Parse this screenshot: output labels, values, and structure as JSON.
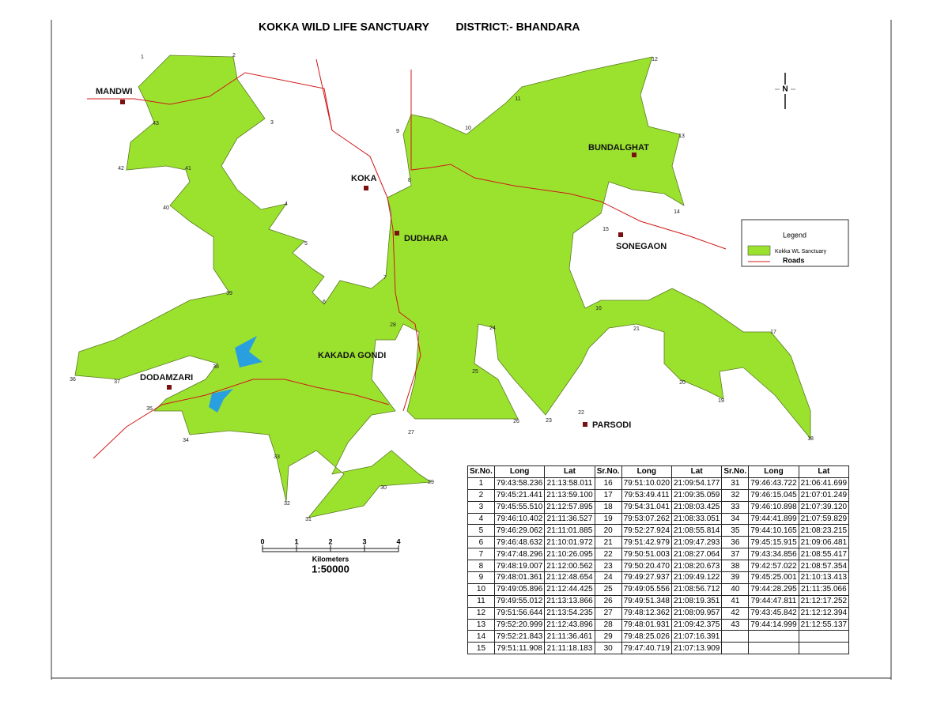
{
  "title": "KOKKA WILD LIFE SANCTUARY",
  "district": "DISTRICT:- BHANDARA",
  "places": [
    "MANDWI",
    "KOKA",
    "DUDHARA",
    "BUNDALGHAT",
    "SONEGAON",
    "KAKADA GONDI",
    "DODAMZARI",
    "PARSODI"
  ],
  "points": [
    1,
    2,
    3,
    4,
    5,
    6,
    7,
    8,
    9,
    10,
    11,
    12,
    13,
    14,
    15,
    16,
    17,
    18,
    19,
    20,
    21,
    22,
    23,
    24,
    25,
    26,
    27,
    28,
    29,
    30,
    31,
    32,
    33,
    34,
    35,
    36,
    37,
    38,
    39,
    40,
    41,
    42,
    43
  ],
  "north": "N",
  "legend": {
    "title": "Legend",
    "items": [
      "Kokka WL Sanctuary",
      "Roads"
    ]
  },
  "scale": {
    "ticks": [
      0,
      1,
      2,
      3,
      4
    ],
    "unit": "Kilometers",
    "ratio": "1:50000"
  },
  "table": {
    "header": [
      "Sr.No.",
      "Long",
      "Lat"
    ],
    "rows": [
      [
        1,
        "79:43:58.236",
        "21:13:58.011"
      ],
      [
        2,
        "79:45:21.441",
        "21:13:59.100"
      ],
      [
        3,
        "79:45:55.510",
        "21:12:57.895"
      ],
      [
        4,
        "79:46:10.402",
        "21:11:36.527"
      ],
      [
        5,
        "79:46:29.062",
        "21:11:01.885"
      ],
      [
        6,
        "79:46:48.632",
        "21:10:01.972"
      ],
      [
        7,
        "79:47:48.296",
        "21:10:26.095"
      ],
      [
        8,
        "79:48:19.007",
        "21:12:00.562"
      ],
      [
        9,
        "79:48:01.361",
        "21:12:48.654"
      ],
      [
        10,
        "79:49:05.896",
        "21:12:44.425"
      ],
      [
        11,
        "79:49:55.012",
        "21:13:13.866"
      ],
      [
        12,
        "79:51:56.644",
        "21:13:54.235"
      ],
      [
        13,
        "79:52:20.999",
        "21:12:43.896"
      ],
      [
        14,
        "79:52:21.843",
        "21:11:36.461"
      ],
      [
        15,
        "79:51:11.908",
        "21:11:18.183"
      ],
      [
        16,
        "79:51:10.020",
        "21:09:54.177"
      ],
      [
        17,
        "79:53:49.411",
        "21:09:35.059"
      ],
      [
        18,
        "79:54:31.041",
        "21:08:03.425"
      ],
      [
        19,
        "79:53:07.262",
        "21:08:33.051"
      ],
      [
        20,
        "79:52:27.924",
        "21:08:55.814"
      ],
      [
        21,
        "79:51:42.979",
        "21:09:47.293"
      ],
      [
        22,
        "79:50:51.003",
        "21:08:27.064"
      ],
      [
        23,
        "79:50:20.470",
        "21:08:20.673"
      ],
      [
        24,
        "79:49:27.937",
        "21:09:49.122"
      ],
      [
        25,
        "79:49:05.556",
        "21:08:56.712"
      ],
      [
        26,
        "79:49:51.348",
        "21:08:19.351"
      ],
      [
        27,
        "79:48:12.362",
        "21:08:09.957"
      ],
      [
        28,
        "79:48:01.931",
        "21:09:42.375"
      ],
      [
        29,
        "79:48:25.026",
        "21:07:16.391"
      ],
      [
        30,
        "79:47:40.719",
        "21:07:13.909"
      ],
      [
        31,
        "79:46:43.722",
        "21:06:41.699"
      ],
      [
        32,
        "79:46:15.045",
        "21:07:01.249"
      ],
      [
        33,
        "79:46:10.898",
        "21:07:39.120"
      ],
      [
        34,
        "79:44:41.899",
        "21:07:59.829"
      ],
      [
        35,
        "79:44:10.165",
        "21:08:23.215"
      ],
      [
        36,
        "79:45:15.915",
        "21:09:06.481"
      ],
      [
        37,
        "79:43:34.856",
        "21:08:55.417"
      ],
      [
        38,
        "79:42:57.022",
        "21:08:57.354"
      ],
      [
        39,
        "79:45:25.001",
        "21:10:13.413"
      ],
      [
        40,
        "79:44:28.295",
        "21:11:35.066"
      ],
      [
        41,
        "79:44:47.811",
        "21:12:17.252"
      ],
      [
        42,
        "79:43:45.842",
        "21:12:12.394"
      ],
      [
        43,
        "79:44:14.999",
        "21:12:55.137"
      ]
    ]
  }
}
